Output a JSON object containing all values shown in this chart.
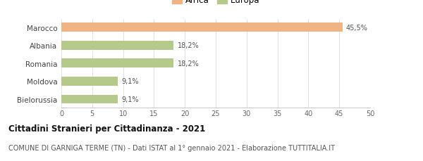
{
  "categories": [
    "Bielorussia",
    "Moldova",
    "Romania",
    "Albania",
    "Marocco"
  ],
  "values": [
    9.1,
    9.1,
    18.2,
    18.2,
    45.5
  ],
  "labels": [
    "9,1%",
    "9,1%",
    "18,2%",
    "18,2%",
    "45,5%"
  ],
  "colors": [
    "#b5c98a",
    "#b5c98a",
    "#b5c98a",
    "#b5c98a",
    "#f0b482"
  ],
  "legend": [
    {
      "label": "Africa",
      "color": "#f0b482"
    },
    {
      "label": "Europa",
      "color": "#b5c98a"
    }
  ],
  "xlim": [
    0,
    50
  ],
  "xticks": [
    0,
    5,
    10,
    15,
    20,
    25,
    30,
    35,
    40,
    45,
    50
  ],
  "title_bold": "Cittadini Stranieri per Cittadinanza - 2021",
  "subtitle": "COMUNE DI GARNIGA TERME (TN) - Dati ISTAT al 1° gennaio 2021 - Elaborazione TUTTITALIA.IT",
  "background_color": "#ffffff",
  "bar_height": 0.5,
  "title_fontsize": 8.5,
  "subtitle_fontsize": 7.0,
  "label_fontsize": 7.0,
  "tick_fontsize": 7.0,
  "ytick_fontsize": 7.5,
  "legend_fontsize": 8.5
}
